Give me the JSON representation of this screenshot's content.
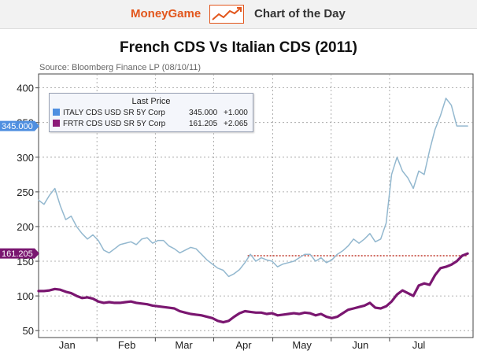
{
  "header": {
    "brand": "MoneyGame",
    "brand_icon": "rising-chart-icon",
    "subtitle": "Chart of the Day"
  },
  "chart_data": {
    "type": "line",
    "title": "French CDS Vs Italian CDS (2011)",
    "source": "Source: Bloomberg Finance LP (08/10/11)",
    "xlabel": "",
    "ylabel": "",
    "ylim": [
      40,
      420
    ],
    "yticks": [
      50,
      100,
      150,
      200,
      250,
      300,
      350,
      400
    ],
    "xlim": [
      0,
      32
    ],
    "xticks": [
      {
        "label": "Jan",
        "x": 2.1
      },
      {
        "label": "Feb",
        "x": 6.5
      },
      {
        "label": "Mar",
        "x": 10.7
      },
      {
        "label": "Apr",
        "x": 15.1
      },
      {
        "label": "May",
        "x": 19.4
      },
      {
        "label": "Jun",
        "x": 23.7
      },
      {
        "label": "Jul",
        "x": 28.0
      }
    ],
    "grid": true,
    "legend": {
      "position": "top-left",
      "title": "Last Price",
      "entries": [
        {
          "name": "ITALY CDS USD SR 5Y Corp",
          "last": "345.000",
          "change": "+1.000",
          "color": "#4f8fe0"
        },
        {
          "name": "FRTR CDS USD SR 5Y Corp",
          "last": "161.205",
          "change": "+2.065",
          "color": "#8b1a78"
        }
      ]
    },
    "price_tags": [
      {
        "label": "345.000",
        "value": 345,
        "color": "#4f8fe0"
      },
      {
        "label": "161.205",
        "value": 161.205,
        "color": "#7a1670"
      }
    ],
    "reference_line": {
      "value": 158,
      "x_start": 15.4,
      "x_end": 31.6,
      "color": "#c0392b",
      "style": "dotted"
    },
    "series": [
      {
        "name": "ITALY CDS USD SR 5Y Corp",
        "color": "#93b8cf",
        "x": [
          0,
          0.4,
          0.8,
          1.2,
          1.6,
          2.0,
          2.4,
          2.8,
          3.2,
          3.6,
          4.0,
          4.4,
          4.8,
          5.2,
          5.6,
          6.0,
          6.4,
          6.8,
          7.2,
          7.6,
          8.0,
          8.4,
          8.8,
          9.2,
          9.6,
          10.0,
          10.4,
          10.8,
          11.2,
          11.6,
          12.0,
          12.4,
          12.8,
          13.2,
          13.6,
          14.0,
          14.4,
          14.8,
          15.2,
          15.6,
          16.0,
          16.4,
          16.8,
          17.2,
          17.6,
          18.0,
          18.4,
          18.8,
          19.2,
          19.6,
          20.0,
          20.4,
          20.8,
          21.2,
          21.6,
          22.0,
          22.4,
          22.8,
          23.2,
          23.6,
          24.0,
          24.4,
          24.8,
          25.2,
          25.6,
          26.0,
          26.4,
          26.8,
          27.2,
          27.6,
          28.0,
          28.4,
          28.8,
          29.2,
          29.6,
          30.0,
          30.4,
          30.8,
          31.2,
          31.6
        ],
        "values": [
          238,
          232,
          245,
          255,
          230,
          210,
          215,
          200,
          190,
          182,
          188,
          180,
          166,
          162,
          168,
          174,
          176,
          178,
          174,
          182,
          184,
          176,
          180,
          180,
          172,
          168,
          162,
          166,
          170,
          168,
          160,
          152,
          146,
          140,
          137,
          128,
          132,
          138,
          148,
          160,
          150,
          155,
          152,
          150,
          142,
          146,
          148,
          150,
          155,
          160,
          160,
          150,
          155,
          148,
          152,
          160,
          165,
          172,
          182,
          176,
          182,
          190,
          178,
          182,
          205,
          275,
          300,
          280,
          270,
          255,
          280,
          275,
          310,
          340,
          360,
          385,
          375,
          345,
          345,
          345
        ]
      },
      {
        "name": "FRTR CDS USD SR 5Y Corp",
        "color": "#7a1670",
        "x": [
          0,
          0.4,
          0.8,
          1.2,
          1.6,
          2.0,
          2.4,
          2.8,
          3.2,
          3.6,
          4.0,
          4.4,
          4.8,
          5.2,
          5.6,
          6.0,
          6.4,
          6.8,
          7.2,
          7.6,
          8.0,
          8.4,
          8.8,
          9.2,
          9.6,
          10.0,
          10.4,
          10.8,
          11.2,
          11.6,
          12.0,
          12.4,
          12.8,
          13.2,
          13.6,
          14.0,
          14.4,
          14.8,
          15.2,
          15.6,
          16.0,
          16.4,
          16.8,
          17.2,
          17.6,
          18.0,
          18.4,
          18.8,
          19.2,
          19.6,
          20.0,
          20.4,
          20.8,
          21.2,
          21.6,
          22.0,
          22.4,
          22.8,
          23.2,
          23.6,
          24.0,
          24.4,
          24.8,
          25.2,
          25.6,
          26.0,
          26.4,
          26.8,
          27.2,
          27.6,
          28.0,
          28.4,
          28.8,
          29.2,
          29.6,
          30.0,
          30.4,
          30.8,
          31.2,
          31.6
        ],
        "values": [
          107,
          107,
          108,
          110,
          109,
          106,
          104,
          100,
          97,
          98,
          96,
          92,
          90,
          91,
          90,
          90,
          91,
          92,
          90,
          89,
          88,
          86,
          85,
          84,
          83,
          82,
          78,
          76,
          74,
          73,
          72,
          70,
          68,
          64,
          62,
          64,
          70,
          75,
          78,
          77,
          76,
          76,
          74,
          75,
          72,
          73,
          74,
          75,
          74,
          76,
          75,
          72,
          74,
          70,
          68,
          70,
          75,
          80,
          82,
          84,
          86,
          90,
          83,
          82,
          85,
          92,
          102,
          108,
          104,
          100,
          115,
          118,
          116,
          130,
          140,
          142,
          145,
          150,
          158,
          161
        ]
      }
    ]
  }
}
